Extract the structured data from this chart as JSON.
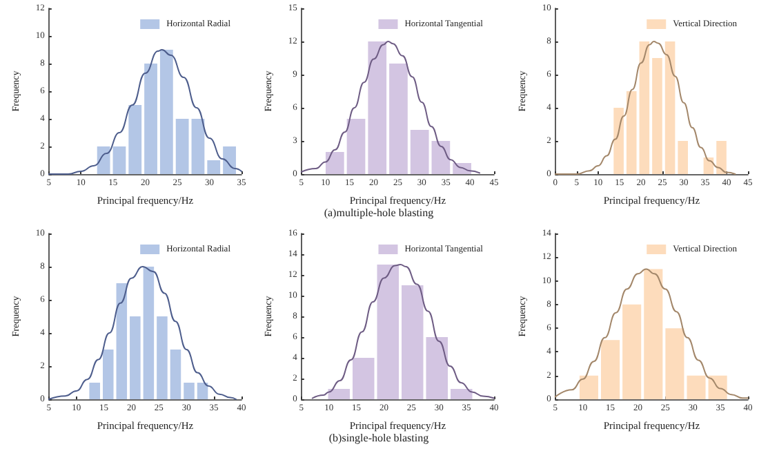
{
  "chart_data": [
    {
      "type": "histogram",
      "xlabel": "Principal frequency/Hz",
      "ylabel": "Frequency",
      "legend": "top right",
      "marker": "none",
      "line_style": "solid",
      "bins": [
        12.3,
        14.75,
        17.2,
        19.65,
        22.1,
        24.55,
        27.0,
        29.45,
        31.9,
        34.35
      ],
      "series": [
        {
          "name": "Horizontal Radial",
          "color": "#b3c6e6",
          "values": [
            2,
            2,
            5,
            8,
            9,
            4,
            4,
            1,
            2
          ]
        },
        {
          "type": "line",
          "color": "#4d5d8c",
          "x": [
            5,
            8,
            10,
            12,
            14,
            16,
            18,
            20,
            22,
            22.6,
            24,
            26,
            28,
            30,
            32,
            34,
            35
          ],
          "values": [
            0,
            0,
            0.2,
            0.6,
            1.5,
            3,
            5,
            7.3,
            8.9,
            9,
            8.6,
            7,
            4.8,
            2.6,
            1.1,
            0.4,
            0.2
          ]
        }
      ],
      "xlim": [
        5,
        35
      ],
      "xticks": [
        5,
        10,
        15,
        20,
        25,
        30,
        35
      ],
      "ylim": [
        0,
        12
      ],
      "yticks": [
        0,
        2,
        4,
        6,
        8,
        10,
        12
      ]
    },
    {
      "type": "histogram",
      "xlabel": "Principal frequency/Hz",
      "ylabel": "Frequency",
      "legend": "top right",
      "marker": "none",
      "line_style": "solid",
      "annotations": [
        "(a)multiple-hole blasting"
      ],
      "bins": [
        9.75,
        14.15,
        18.55,
        22.95,
        27.35,
        31.75,
        36.15,
        40.55
      ],
      "series": [
        {
          "name": "Horizontal Tangential",
          "color": "#d3c5e2",
          "values": [
            2,
            5,
            12,
            10,
            4,
            3,
            1
          ]
        },
        {
          "type": "line",
          "color": "#6e5c84",
          "x": [
            5,
            8,
            10,
            12,
            14,
            16,
            18,
            20,
            22,
            23,
            24,
            26,
            28,
            30,
            32,
            34,
            36,
            38,
            40,
            42
          ],
          "values": [
            0.2,
            0.5,
            1.1,
            2.2,
            3.8,
            6,
            8.3,
            10.4,
            11.7,
            12,
            11.8,
            10.7,
            8.8,
            6.5,
            4.3,
            2.5,
            1.3,
            0.6,
            0.3,
            0.1
          ]
        }
      ],
      "xlim": [
        5,
        45
      ],
      "xticks": [
        5,
        10,
        15,
        20,
        25,
        30,
        35,
        40,
        45
      ],
      "ylim": [
        0,
        15
      ],
      "yticks": [
        0,
        3,
        6,
        9,
        12,
        15
      ]
    },
    {
      "type": "histogram",
      "xlabel": "Principal frequency/Hz",
      "ylabel": "Frequency",
      "legend": "top right",
      "marker": "none",
      "line_style": "solid",
      "bins": [
        13.3,
        16.3,
        19.3,
        22.3,
        25.3,
        28.3,
        31.3,
        34.3,
        37.3,
        40.3
      ],
      "series": [
        {
          "name": "Vertical Direction",
          "color": "#fddcbc",
          "values": [
            4,
            5,
            8,
            7,
            8,
            2,
            0,
            1,
            2
          ]
        },
        {
          "type": "line",
          "color": "#a3876a",
          "x": [
            0,
            5,
            8,
            10,
            12,
            14,
            16,
            18,
            20,
            22,
            23,
            24,
            26,
            28,
            30,
            32,
            34,
            36,
            38,
            40,
            42
          ],
          "values": [
            0,
            0,
            0.2,
            0.5,
            1.1,
            2.1,
            3.5,
            5.1,
            6.7,
            7.8,
            8,
            7.9,
            7.2,
            5.9,
            4.3,
            2.8,
            1.6,
            0.8,
            0.4,
            0.1,
            0
          ]
        }
      ],
      "xlim": [
        0,
        45
      ],
      "xticks": [
        0,
        5,
        10,
        15,
        20,
        25,
        30,
        35,
        40,
        45
      ],
      "ylim": [
        0,
        10
      ],
      "yticks": [
        0,
        2,
        4,
        6,
        8,
        10
      ]
    },
    {
      "type": "histogram",
      "xlabel": "Principal frequency/Hz",
      "ylabel": "Frequency",
      "legend": "top right",
      "marker": "none",
      "line_style": "solid",
      "bins": [
        12.1,
        14.55,
        17.0,
        19.45,
        21.9,
        24.35,
        26.8,
        29.25,
        31.7,
        34.15
      ],
      "series": [
        {
          "name": "Horizontal Radial",
          "color": "#b3c6e6",
          "values": [
            1,
            3,
            7,
            5,
            8,
            5,
            3,
            1,
            1
          ]
        },
        {
          "type": "line",
          "color": "#4d5d8c",
          "x": [
            5,
            8,
            10,
            12,
            14,
            16,
            18,
            20,
            22,
            24,
            26,
            28,
            30,
            32,
            34,
            36,
            38,
            39
          ],
          "values": [
            0,
            0.2,
            0.5,
            1.2,
            2.4,
            4,
            5.8,
            7.3,
            8,
            7.7,
            6.4,
            4.7,
            3,
            1.6,
            0.8,
            0.3,
            0.1,
            0
          ]
        }
      ],
      "xlim": [
        5,
        40
      ],
      "xticks": [
        5,
        10,
        15,
        20,
        25,
        30,
        35,
        40
      ],
      "ylim": [
        0,
        10
      ],
      "yticks": [
        0,
        2,
        4,
        6,
        8,
        10
      ]
    },
    {
      "type": "histogram",
      "xlabel": "Principal frequency/Hz",
      "ylabel": "Frequency",
      "legend": "top right",
      "marker": "none",
      "line_style": "solid",
      "annotations": [
        "(b)single-hole blasting"
      ],
      "bins": [
        9.6,
        14.05,
        18.5,
        22.95,
        27.4,
        31.85,
        36.3
      ],
      "series": [
        {
          "name": "Horizontal Tangential",
          "color": "#d3c5e2",
          "values": [
            1,
            4,
            13,
            11,
            6,
            1
          ]
        },
        {
          "type": "line",
          "color": "#6e5c84",
          "x": [
            7,
            9,
            10,
            12,
            14,
            16,
            18,
            20,
            22,
            23,
            24,
            26,
            28,
            30,
            32,
            34,
            36,
            38,
            40
          ],
          "values": [
            0.1,
            0.4,
            0.7,
            1.8,
            3.8,
            6.5,
            9.4,
            11.7,
            12.9,
            13,
            12.8,
            11.1,
            8.5,
            5.6,
            3.2,
            1.6,
            0.7,
            0.3,
            0.1
          ]
        }
      ],
      "xlim": [
        5,
        40
      ],
      "xticks": [
        5,
        10,
        15,
        20,
        25,
        30,
        35,
        40
      ],
      "ylim": [
        0,
        16
      ],
      "yticks": [
        0,
        2,
        4,
        6,
        8,
        10,
        12,
        14,
        16
      ]
    },
    {
      "type": "histogram",
      "xlabel": "Principal frequency/Hz",
      "ylabel": "Frequency",
      "legend": "top right",
      "marker": "none",
      "line_style": "solid",
      "bins": [
        9.15,
        13.05,
        16.95,
        20.85,
        24.75,
        28.65,
        32.55,
        36.45
      ],
      "series": [
        {
          "name": "Vertical Direction",
          "color": "#fddcbc",
          "values": [
            2,
            5,
            8,
            11,
            6,
            2,
            2
          ]
        },
        {
          "type": "line",
          "color": "#a3876a",
          "x": [
            5,
            8,
            10,
            12,
            14,
            16,
            18,
            20,
            21.5,
            23,
            25,
            27,
            29,
            31,
            33,
            35,
            37,
            39,
            40
          ],
          "values": [
            0.2,
            0.8,
            1.7,
            3.2,
            5.2,
            7.3,
            9.3,
            10.6,
            11,
            10.6,
            9.3,
            7.4,
            5.2,
            3.3,
            1.8,
            0.9,
            0.4,
            0.1,
            0.1
          ]
        }
      ],
      "xlim": [
        5,
        40
      ],
      "xticks": [
        5,
        10,
        15,
        20,
        25,
        30,
        35,
        40
      ],
      "ylim": [
        0,
        14
      ],
      "yticks": [
        0,
        2,
        4,
        6,
        8,
        10,
        12,
        14
      ]
    }
  ]
}
